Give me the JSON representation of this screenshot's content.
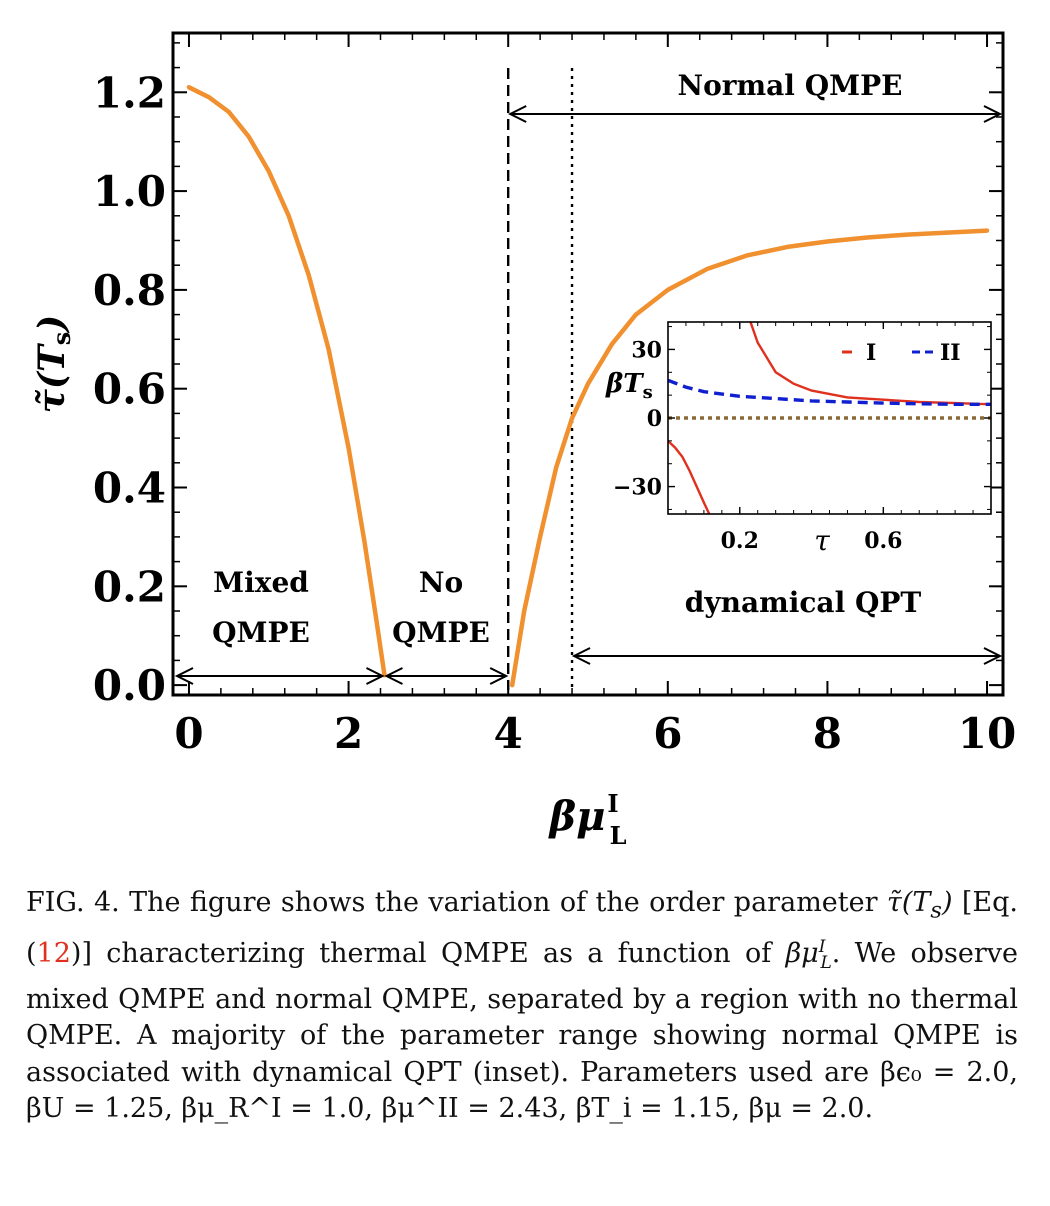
{
  "chart_data": [
    {
      "type": "line",
      "role": "main",
      "xlabel": "βμ_L^I",
      "ylabel": "τ̃(T_s)",
      "xlim": [
        -0.2,
        10.2
      ],
      "ylim": [
        -0.02,
        1.32
      ],
      "x_ticks": [
        "0",
        "2",
        "4",
        "6",
        "8",
        "10"
      ],
      "y_ticks": [
        "0.0",
        "0.2",
        "0.4",
        "0.6",
        "0.8",
        "1.0",
        "1.2"
      ],
      "series": [
        {
          "color": "#f0902e",
          "x": [
            0.0,
            0.25,
            0.5,
            0.75,
            1.0,
            1.25,
            1.5,
            1.75,
            2.0,
            2.2,
            2.35,
            2.45
          ],
          "y": [
            1.21,
            1.19,
            1.16,
            1.11,
            1.04,
            0.95,
            0.83,
            0.68,
            0.48,
            0.29,
            0.13,
            0.02
          ]
        },
        {
          "color": "#f0902e",
          "x": [
            4.05,
            4.2,
            4.4,
            4.6,
            4.8,
            5.0,
            5.3,
            5.6,
            6.0,
            6.5,
            7.0,
            7.5,
            8.0,
            8.5,
            9.0,
            9.5,
            10.0
          ],
          "y": [
            0.0,
            0.15,
            0.3,
            0.44,
            0.54,
            0.61,
            0.69,
            0.75,
            0.8,
            0.843,
            0.87,
            0.887,
            0.898,
            0.906,
            0.912,
            0.916,
            0.92
          ]
        }
      ],
      "vlines": [
        {
          "x": 4.0,
          "style": "dashed"
        },
        {
          "x": 4.8,
          "style": "dotted"
        }
      ],
      "regions": [
        {
          "lines": [
            "Mixed",
            "QMPE"
          ],
          "from": 0,
          "to": 2.45
        },
        {
          "lines": [
            "No",
            "QMPE"
          ],
          "from": 2.45,
          "to": 4.0
        },
        {
          "lines": [
            "Normal  QMPE"
          ],
          "from": 4.0,
          "to": 10.2
        },
        {
          "lines": [
            "dynamical  QPT"
          ],
          "from": 4.8,
          "to": 10.2
        }
      ]
    },
    {
      "type": "line",
      "role": "inset",
      "xlabel": "τ",
      "ylabel": "βT_s",
      "xlim": [
        0.0,
        0.9
      ],
      "ylim": [
        -42,
        42
      ],
      "x_ticks": [
        "0.2",
        "0.6"
      ],
      "y_ticks": [
        "30",
        "0",
        "−30"
      ],
      "legend": {
        "position": "top-right",
        "entries": [
          "I",
          "II"
        ]
      },
      "series": [
        {
          "name": "I",
          "color": "#e0301e",
          "style": "solid",
          "x": [
            0.23,
            0.25,
            0.3,
            0.35,
            0.4,
            0.5,
            0.6,
            0.7,
            0.8,
            0.9
          ],
          "y": [
            42,
            33,
            20,
            15,
            12,
            9,
            8,
            7,
            6.5,
            6
          ]
        },
        {
          "name": "I",
          "color": "#e0301e",
          "style": "solid",
          "x": [
            0.0,
            0.02,
            0.04,
            0.06,
            0.08,
            0.1,
            0.115
          ],
          "y": [
            -10,
            -13,
            -17,
            -23,
            -30,
            -37,
            -42
          ]
        },
        {
          "name": "II",
          "color": "#1020d0",
          "style": "dashed",
          "x": [
            0.0,
            0.05,
            0.1,
            0.2,
            0.3,
            0.4,
            0.5,
            0.6,
            0.7,
            0.8,
            0.9
          ],
          "y": [
            16.5,
            13.5,
            11.5,
            9.5,
            8.5,
            7.5,
            7,
            6.5,
            6.2,
            6,
            6
          ]
        },
        {
          "color": "#8b6a3a",
          "style": "dotted",
          "x": [
            0.0,
            0.9
          ],
          "y": [
            0,
            0
          ]
        }
      ]
    }
  ],
  "caption": {
    "p1": "FIG. 4. The figure shows the variation of the order parameter ",
    "p2": " [Eq. (",
    "ref": "12",
    "p3": ")] characterizing thermal QMPE as a function of ",
    "p4": ". We observe mixed QMPE and normal QMPE, separated by a region with no thermal QMPE. A majority of the parameter range showing normal QMPE is associated with dynamical QPT (inset). Parameters used are ",
    "params": "βϵ₀ = 2.0, βU = 1.25, βμ_R^I = 1.0, βμ^II = 2.43, βT_i = 1.15, βμ = 2.0."
  }
}
